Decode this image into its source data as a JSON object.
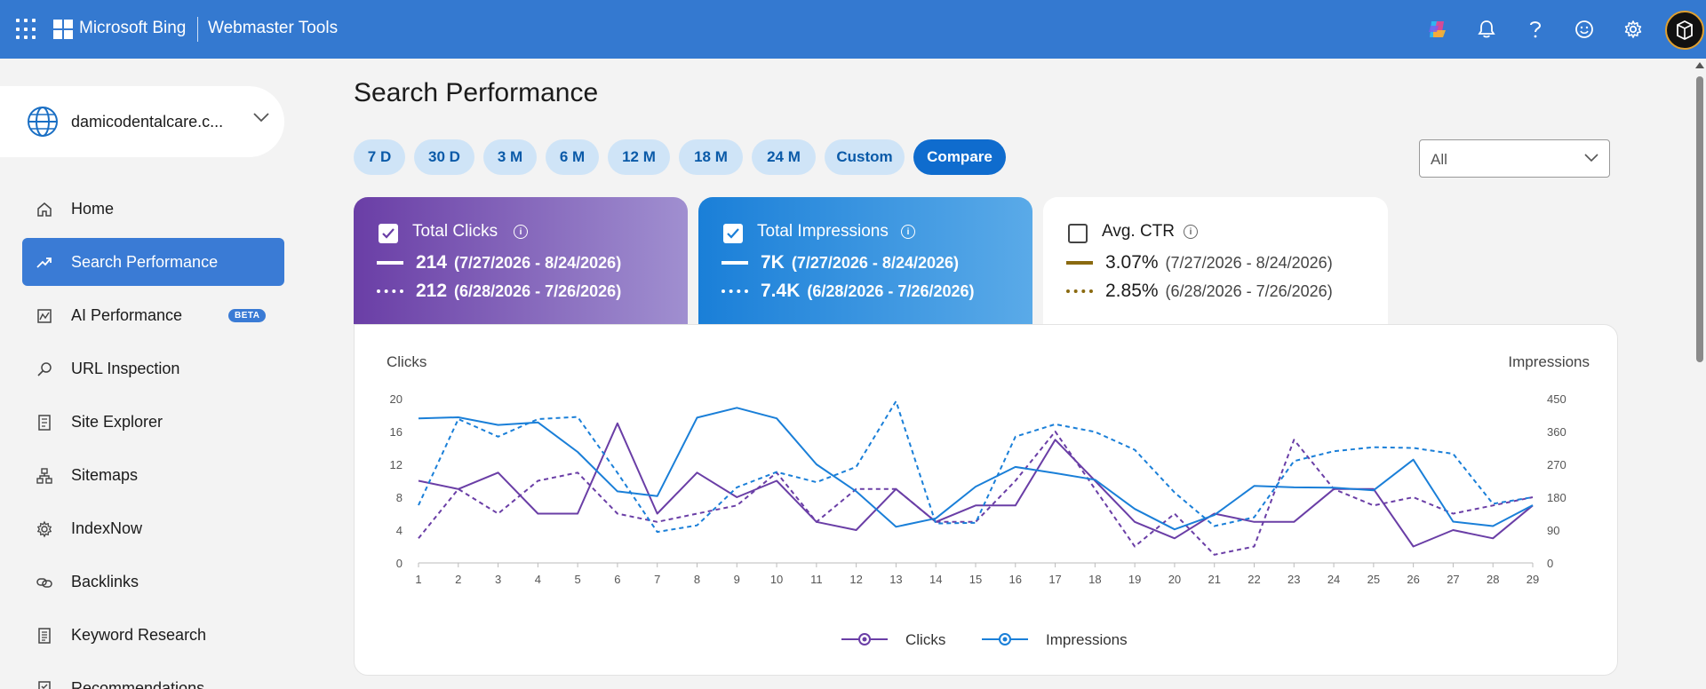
{
  "header": {
    "brand": "Microsoft Bing",
    "product": "Webmaster Tools",
    "icons": [
      "app-launcher-icon",
      "copilot-icon",
      "bell-icon",
      "help-icon",
      "smiley-feedback-icon",
      "gear-icon",
      "avatar"
    ]
  },
  "sidebar": {
    "site": "damicodentalcare.c...",
    "items": [
      {
        "label": "Home",
        "icon": "home-icon"
      },
      {
        "label": "Search Performance",
        "icon": "trend-icon",
        "active": true
      },
      {
        "label": "AI Performance",
        "icon": "ai-chart-icon",
        "badge": "BETA"
      },
      {
        "label": "URL Inspection",
        "icon": "search-icon"
      },
      {
        "label": "Site Explorer",
        "icon": "site-explorer-icon"
      },
      {
        "label": "Sitemaps",
        "icon": "sitemap-icon"
      },
      {
        "label": "IndexNow",
        "icon": "indexnow-icon"
      },
      {
        "label": "Backlinks",
        "icon": "link-icon"
      },
      {
        "label": "Keyword Research",
        "icon": "keyword-icon"
      },
      {
        "label": "Recommendations",
        "icon": "recommendations-icon"
      }
    ]
  },
  "main": {
    "title": "Search Performance",
    "ranges": [
      "7 D",
      "30 D",
      "3 M",
      "6 M",
      "12 M",
      "18 M",
      "24 M",
      "Custom",
      "Compare"
    ],
    "selected_range": "Compare",
    "filter": {
      "value": "All"
    }
  },
  "metrics": {
    "clicks": {
      "title": "Total Clicks",
      "checked": true,
      "current": "214",
      "current_range": "(7/27/2026 - 8/24/2026)",
      "previous": "212",
      "previous_range": "(6/28/2026 - 7/26/2026)"
    },
    "impressions": {
      "title": "Total Impressions",
      "checked": true,
      "current": "7K",
      "current_range": "(7/27/2026 - 8/24/2026)",
      "previous": "7.4K",
      "previous_range": "(6/28/2026 - 7/26/2026)"
    },
    "ctr": {
      "title": "Avg. CTR",
      "checked": false,
      "current": "3.07%",
      "current_range": "(7/27/2026 - 8/24/2026)",
      "previous": "2.85%",
      "previous_range": "(6/28/2026 - 7/26/2026)"
    }
  },
  "colors": {
    "clicks": "#6a3ea6",
    "impressions": "#1a7fd8",
    "ctr": "#8a6a10",
    "header": "#3479d0"
  },
  "chart_data": {
    "type": "line",
    "ylabel_left": "Clicks",
    "ylabel_right": "Impressions",
    "x": [
      1,
      2,
      3,
      4,
      5,
      6,
      7,
      8,
      9,
      10,
      11,
      12,
      13,
      14,
      15,
      16,
      17,
      18,
      19,
      20,
      21,
      22,
      23,
      24,
      25,
      26,
      27,
      28,
      29
    ],
    "y_left_ticks": [
      0,
      4,
      8,
      12,
      16,
      20
    ],
    "y_right_ticks": [
      0,
      90,
      180,
      270,
      360,
      450
    ],
    "ylim_left": [
      0,
      20
    ],
    "ylim_right": [
      0,
      450
    ],
    "series": [
      {
        "name": "Clicks",
        "axis": "left",
        "style": "solid",
        "values": [
          10,
          9,
          11,
          6,
          6,
          17,
          6,
          11,
          8,
          10,
          5,
          4,
          9,
          5,
          7,
          7,
          15,
          10,
          5,
          3,
          6,
          5,
          5,
          9,
          9,
          2,
          4,
          3,
          7
        ]
      },
      {
        "name": "Clicks",
        "axis": "left",
        "style": "dashed",
        "values": [
          3,
          9,
          6,
          10,
          11,
          6,
          5,
          6,
          7,
          11,
          5,
          9,
          9,
          5,
          5,
          10,
          16,
          9,
          2,
          6,
          1,
          2,
          15,
          9,
          7,
          8,
          6,
          7,
          8
        ]
      },
      {
        "name": "Impressions",
        "axis": "right",
        "style": "solid",
        "values": [
          396,
          399,
          378,
          385,
          304,
          196,
          183,
          398,
          425,
          396,
          270,
          196,
          99,
          122,
          209,
          263,
          246,
          228,
          148,
          92,
          131,
          211,
          207,
          206,
          199,
          283,
          113,
          101,
          158
        ]
      },
      {
        "name": "Impressions",
        "axis": "right",
        "style": "dashed",
        "values": [
          158,
          394,
          346,
          394,
          400,
          247,
          85,
          103,
          207,
          249,
          221,
          263,
          443,
          108,
          110,
          346,
          380,
          359,
          310,
          193,
          101,
          125,
          279,
          306,
          317,
          315,
          299,
          162,
          180
        ]
      }
    ],
    "legend": [
      {
        "label": "Clicks"
      },
      {
        "label": "Impressions"
      }
    ],
    "legend_position": "bottom-center"
  }
}
